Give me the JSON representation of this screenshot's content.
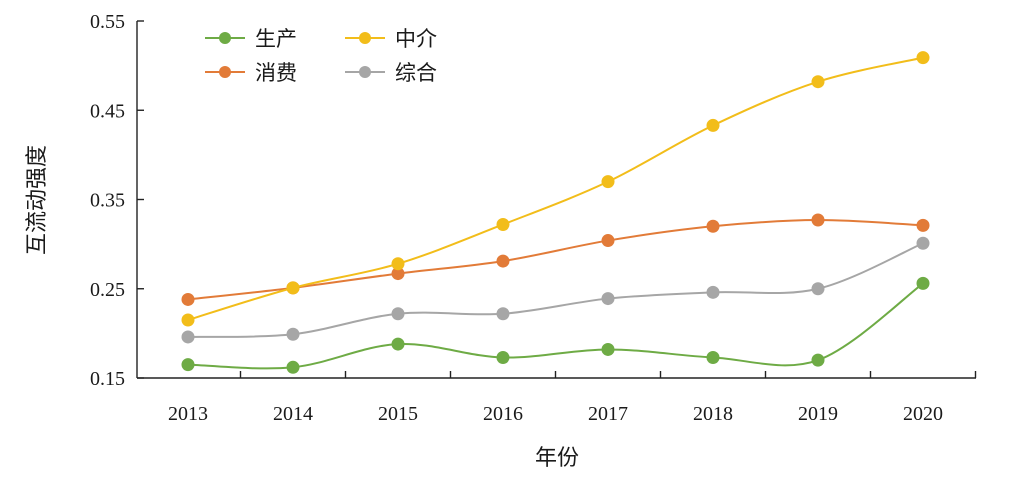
{
  "chart_data": {
    "type": "line",
    "title": "",
    "xlabel": "年份",
    "ylabel": "互流动强度",
    "categories": [
      "2013",
      "2014",
      "2015",
      "2016",
      "2017",
      "2018",
      "2019",
      "2020"
    ],
    "yticks": [
      "0.15",
      "0.25",
      "0.35",
      "0.45",
      "0.55"
    ],
    "ylim": [
      0.15,
      0.55
    ],
    "grid": false,
    "legend_position": "top-left",
    "series": [
      {
        "name": "生产",
        "color": "#6eab45",
        "values": [
          0.165,
          0.162,
          0.188,
          0.173,
          0.182,
          0.173,
          0.17,
          0.256
        ]
      },
      {
        "name": "消费",
        "color": "#e27b38",
        "values": [
          0.238,
          0.251,
          0.267,
          0.281,
          0.304,
          0.32,
          0.327,
          0.321
        ]
      },
      {
        "name": "中介",
        "color": "#f2bd1a",
        "values": [
          0.215,
          0.251,
          0.278,
          0.322,
          0.37,
          0.433,
          0.482,
          0.509
        ]
      },
      {
        "name": "综合",
        "color": "#a6a6a6",
        "values": [
          0.196,
          0.199,
          0.222,
          0.222,
          0.239,
          0.246,
          0.25,
          0.301
        ]
      }
    ]
  }
}
